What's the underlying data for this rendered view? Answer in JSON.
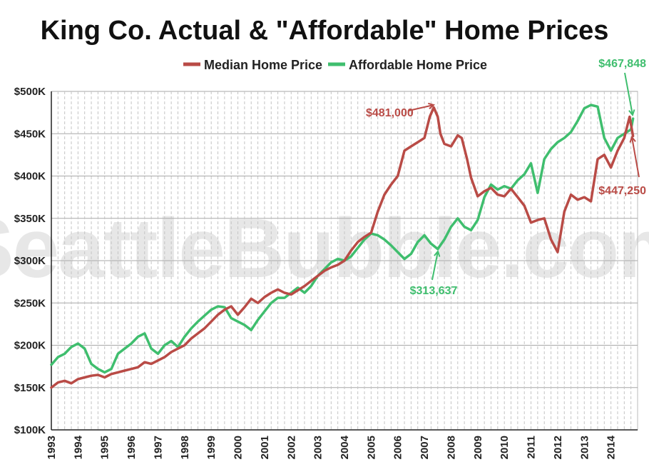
{
  "chart_data": {
    "type": "line",
    "title": "King Co. Actual & \"Affordable\" Home Prices",
    "xlabel": "",
    "ylabel": "",
    "xlim": [
      1993,
      2015
    ],
    "ylim": [
      100000,
      500000
    ],
    "y_ticks": [
      {
        "value": 100000,
        "label": "$100K"
      },
      {
        "value": 150000,
        "label": "$150K"
      },
      {
        "value": 200000,
        "label": "$200K"
      },
      {
        "value": 250000,
        "label": "$250K"
      },
      {
        "value": 300000,
        "label": "$300K"
      },
      {
        "value": 350000,
        "label": "$350K"
      },
      {
        "value": 400000,
        "label": "$400K"
      },
      {
        "value": 450000,
        "label": "$450K"
      },
      {
        "value": 500000,
        "label": "$500K"
      }
    ],
    "x_ticks": [
      "1993",
      "1994",
      "1995",
      "1996",
      "1997",
      "1998",
      "1999",
      "2000",
      "2001",
      "2002",
      "2003",
      "2004",
      "2005",
      "2006",
      "2007",
      "2008",
      "2009",
      "2010",
      "2011",
      "2012",
      "2013",
      "2014"
    ],
    "grid": {
      "horizontal": true,
      "vertical_dashed": true
    },
    "legend_position": "top-center",
    "watermark": "SeattleBubble.com",
    "series": [
      {
        "name": "Median Home Price",
        "color": "#b94b46",
        "x": [
          1993.0,
          1993.25,
          1993.5,
          1993.75,
          1994.0,
          1994.25,
          1994.5,
          1994.75,
          1995.0,
          1995.25,
          1995.5,
          1995.75,
          1996.0,
          1996.25,
          1996.5,
          1996.75,
          1997.0,
          1997.25,
          1997.5,
          1997.75,
          1998.0,
          1998.25,
          1998.5,
          1998.75,
          1999.0,
          1999.25,
          1999.5,
          1999.75,
          2000.0,
          2000.25,
          2000.5,
          2000.75,
          2001.0,
          2001.25,
          2001.5,
          2001.75,
          2002.0,
          2002.25,
          2002.5,
          2002.75,
          2003.0,
          2003.25,
          2003.5,
          2003.75,
          2004.0,
          2004.25,
          2004.5,
          2004.75,
          2005.0,
          2005.25,
          2005.5,
          2005.75,
          2006.0,
          2006.25,
          2006.5,
          2006.75,
          2007.0,
          2007.2,
          2007.35,
          2007.5,
          2007.6,
          2007.75,
          2008.0,
          2008.25,
          2008.4,
          2008.6,
          2008.75,
          2009.0,
          2009.25,
          2009.5,
          2009.75,
          2010.0,
          2010.25,
          2010.5,
          2010.75,
          2011.0,
          2011.25,
          2011.5,
          2011.75,
          2012.0,
          2012.25,
          2012.5,
          2012.75,
          2013.0,
          2013.25,
          2013.5,
          2013.75,
          2014.0,
          2014.25,
          2014.5,
          2014.7,
          2014.83
        ],
        "values": [
          150000,
          156000,
          158000,
          155000,
          160000,
          162000,
          164000,
          165000,
          162000,
          166000,
          168000,
          170000,
          172000,
          174000,
          180000,
          178000,
          182000,
          186000,
          192000,
          196000,
          200000,
          208000,
          214000,
          220000,
          228000,
          236000,
          242000,
          246000,
          236000,
          245000,
          255000,
          250000,
          257000,
          262000,
          266000,
          262000,
          260000,
          265000,
          270000,
          276000,
          282000,
          288000,
          292000,
          295000,
          300000,
          312000,
          322000,
          328000,
          333000,
          358000,
          378000,
          390000,
          400000,
          430000,
          435000,
          440000,
          445000,
          470000,
          481000,
          470000,
          450000,
          438000,
          435000,
          448000,
          445000,
          420000,
          398000,
          376000,
          382000,
          386000,
          378000,
          376000,
          385000,
          375000,
          365000,
          345000,
          348000,
          350000,
          325000,
          310000,
          358000,
          378000,
          372000,
          375000,
          370000,
          420000,
          425000,
          410000,
          430000,
          445000,
          470000,
          447250
        ]
      },
      {
        "name": "Affordable Home Price",
        "color": "#3fbe6e",
        "x": [
          1993.0,
          1993.25,
          1993.5,
          1993.75,
          1994.0,
          1994.25,
          1994.5,
          1994.75,
          1995.0,
          1995.25,
          1995.5,
          1995.75,
          1996.0,
          1996.25,
          1996.5,
          1996.75,
          1997.0,
          1997.25,
          1997.5,
          1997.75,
          1998.0,
          1998.25,
          1998.5,
          1998.75,
          1999.0,
          1999.25,
          1999.5,
          1999.75,
          2000.0,
          2000.25,
          2000.5,
          2000.75,
          2001.0,
          2001.25,
          2001.5,
          2001.75,
          2002.0,
          2002.25,
          2002.5,
          2002.75,
          2003.0,
          2003.25,
          2003.5,
          2003.75,
          2004.0,
          2004.25,
          2004.5,
          2004.75,
          2005.0,
          2005.25,
          2005.5,
          2005.75,
          2006.0,
          2006.25,
          2006.5,
          2006.75,
          2007.0,
          2007.25,
          2007.5,
          2007.75,
          2008.0,
          2008.25,
          2008.5,
          2008.75,
          2009.0,
          2009.25,
          2009.5,
          2009.75,
          2010.0,
          2010.25,
          2010.5,
          2010.75,
          2011.0,
          2011.25,
          2011.5,
          2011.75,
          2012.0,
          2012.25,
          2012.5,
          2012.75,
          2013.0,
          2013.25,
          2013.5,
          2013.75,
          2014.0,
          2014.25,
          2014.5,
          2014.75,
          2014.83
        ],
        "values": [
          177000,
          186000,
          190000,
          198000,
          202000,
          196000,
          178000,
          172000,
          168000,
          172000,
          190000,
          196000,
          202000,
          210000,
          214000,
          196000,
          190000,
          200000,
          205000,
          198000,
          210000,
          220000,
          228000,
          235000,
          242000,
          246000,
          245000,
          232000,
          228000,
          224000,
          218000,
          230000,
          240000,
          250000,
          256000,
          256000,
          262000,
          268000,
          262000,
          270000,
          282000,
          290000,
          298000,
          302000,
          300000,
          305000,
          315000,
          325000,
          332000,
          330000,
          325000,
          318000,
          310000,
          302000,
          308000,
          322000,
          330000,
          320000,
          313637,
          325000,
          340000,
          350000,
          340000,
          336000,
          348000,
          375000,
          390000,
          384000,
          388000,
          385000,
          395000,
          402000,
          415000,
          380000,
          420000,
          432000,
          440000,
          445000,
          452000,
          465000,
          480000,
          484000,
          482000,
          445000,
          430000,
          445000,
          450000,
          455000,
          467848
        ]
      }
    ],
    "annotations": [
      {
        "series": "Median Home Price",
        "label": "$481,000",
        "x": 2007.35,
        "y": 481000
      },
      {
        "series": "Affordable Home Price",
        "label": "$313,637",
        "x": 2007.5,
        "y": 313637
      },
      {
        "series": "Affordable Home Price",
        "label": "$467,848",
        "x": 2014.83,
        "y": 467848
      },
      {
        "series": "Median Home Price",
        "label": "$447,250",
        "x": 2014.83,
        "y": 447250
      }
    ]
  }
}
